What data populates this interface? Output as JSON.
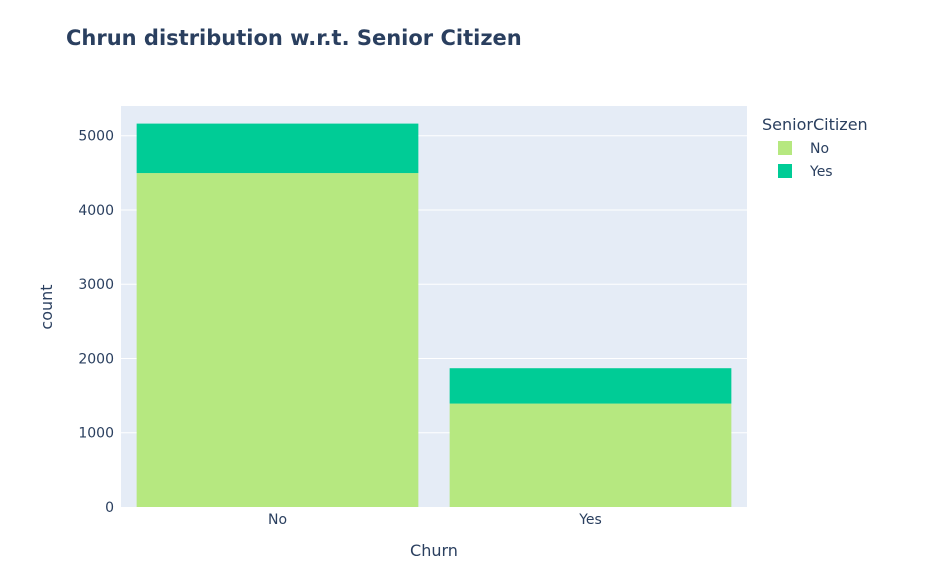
{
  "chart_data": {
    "type": "bar",
    "barmode": "stack",
    "title": "Chrun distribution w.r.t. Senior Citizen",
    "xlabel": "Churn",
    "ylabel": "count",
    "categories": [
      "No",
      "Yes"
    ],
    "ylim": [
      0,
      5400
    ],
    "yticks": [
      0,
      1000,
      2000,
      3000,
      4000,
      5000
    ],
    "grid": true,
    "legend": {
      "title": "SeniorCitizen",
      "placement": "top-right outside"
    },
    "series": [
      {
        "name": "No",
        "color": "#b6e880",
        "values": [
          4497,
          1393
        ]
      },
      {
        "name": "Yes",
        "color": "#00cc96",
        "values": [
          666,
          476
        ]
      }
    ]
  },
  "colors": {
    "plot_bg": "#e5ecf6",
    "grid": "#ffffff",
    "text": "#2a3f5f"
  }
}
